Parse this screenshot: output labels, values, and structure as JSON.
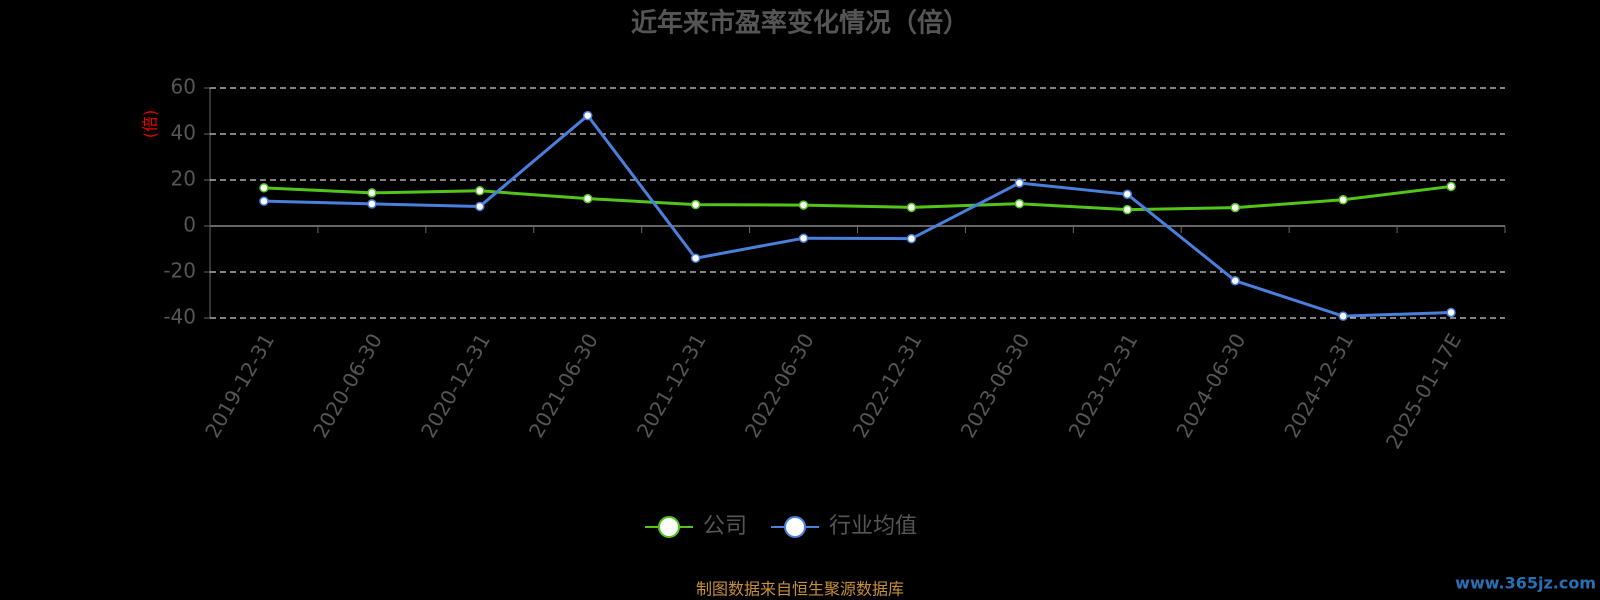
{
  "chart_data": {
    "type": "line",
    "title": "近年来市盈率变化情况（倍）",
    "y_label": "(倍)",
    "categories": [
      "2019-12-31",
      "2020-06-30",
      "2020-12-31",
      "2021-06-30",
      "2021-12-31",
      "2022-06-30",
      "2022-12-31",
      "2023-06-30",
      "2023-12-31",
      "2024-06-30",
      "2024-12-31",
      "2025-01-17E"
    ],
    "series": [
      {
        "name": "公司",
        "color": "#52c41a",
        "values": [
          16.6,
          14.4,
          15.3,
          11.9,
          9.3,
          9.1,
          8.1,
          9.7,
          7.1,
          8.0,
          11.4,
          17.2
        ]
      },
      {
        "name": "行业均值",
        "color": "#4a7fdc",
        "values": [
          10.8,
          9.6,
          8.5,
          48.0,
          -14.0,
          -5.3,
          -5.5,
          18.7,
          13.8,
          -23.8,
          -39.2,
          -37.6
        ]
      }
    ],
    "ylim": [
      -40,
      60
    ],
    "yticks": [
      60,
      40,
      20,
      0,
      -20,
      -40
    ],
    "grid": true,
    "source": "制图数据来自恒生聚源数据库",
    "watermark": "www.365jz.com"
  }
}
